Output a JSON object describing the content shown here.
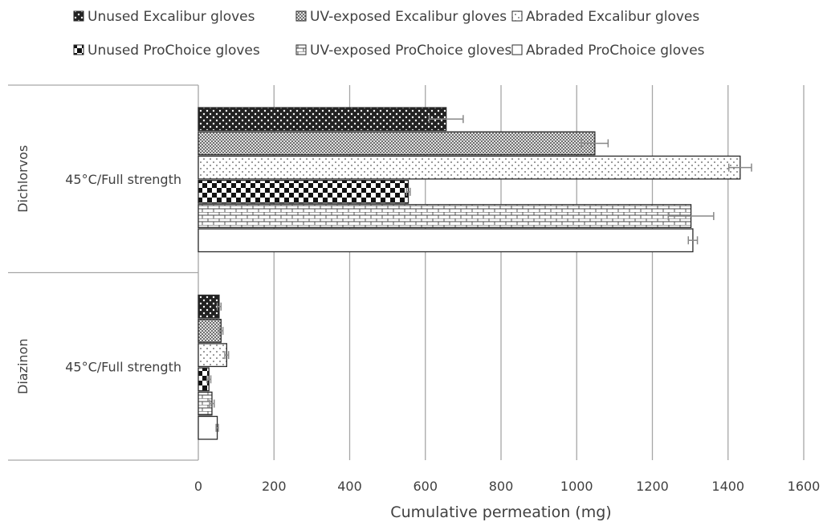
{
  "chart_data": {
    "type": "bar",
    "orientation": "horizontal",
    "title": "",
    "xlabel": "Cumulative permeation (mg)",
    "ylabel": "",
    "xlim": [
      0,
      1600
    ],
    "x_ticks": [
      0,
      200,
      400,
      600,
      800,
      1000,
      1200,
      1400,
      1600
    ],
    "grid": "vertical",
    "legend_position": "top",
    "groups": [
      {
        "name": "Dichlorvos",
        "condition": "45°C/Full strength"
      },
      {
        "name": "Diazinon",
        "condition": "45°C/Full strength"
      }
    ],
    "series": [
      {
        "name": "Unused Excalibur gloves",
        "pattern": "dots-dark",
        "values": [
          655,
          55
        ],
        "errors": [
          45,
          5
        ]
      },
      {
        "name": "UV-exposed Excalibur gloves",
        "pattern": "crosshatch-fine",
        "values": [
          1048,
          60
        ],
        "errors": [
          35,
          5
        ]
      },
      {
        "name": "Abraded Excalibur gloves",
        "pattern": "dots-light",
        "values": [
          1432,
          75
        ],
        "errors": [
          30,
          5
        ]
      },
      {
        "name": "Unused ProChoice gloves",
        "pattern": "checker",
        "values": [
          555,
          28
        ],
        "errors": [
          5,
          5
        ]
      },
      {
        "name": "UV-exposed ProChoice gloves",
        "pattern": "brick",
        "values": [
          1302,
          36
        ],
        "errors": [
          60,
          6
        ]
      },
      {
        "name": "Abraded ProChoice gloves",
        "pattern": "plain",
        "values": [
          1307,
          50
        ],
        "errors": [
          12,
          3
        ]
      }
    ],
    "colors": {
      "ink": "#2b2b2b",
      "grid": "#a6a6a6",
      "text": "#404040"
    }
  }
}
